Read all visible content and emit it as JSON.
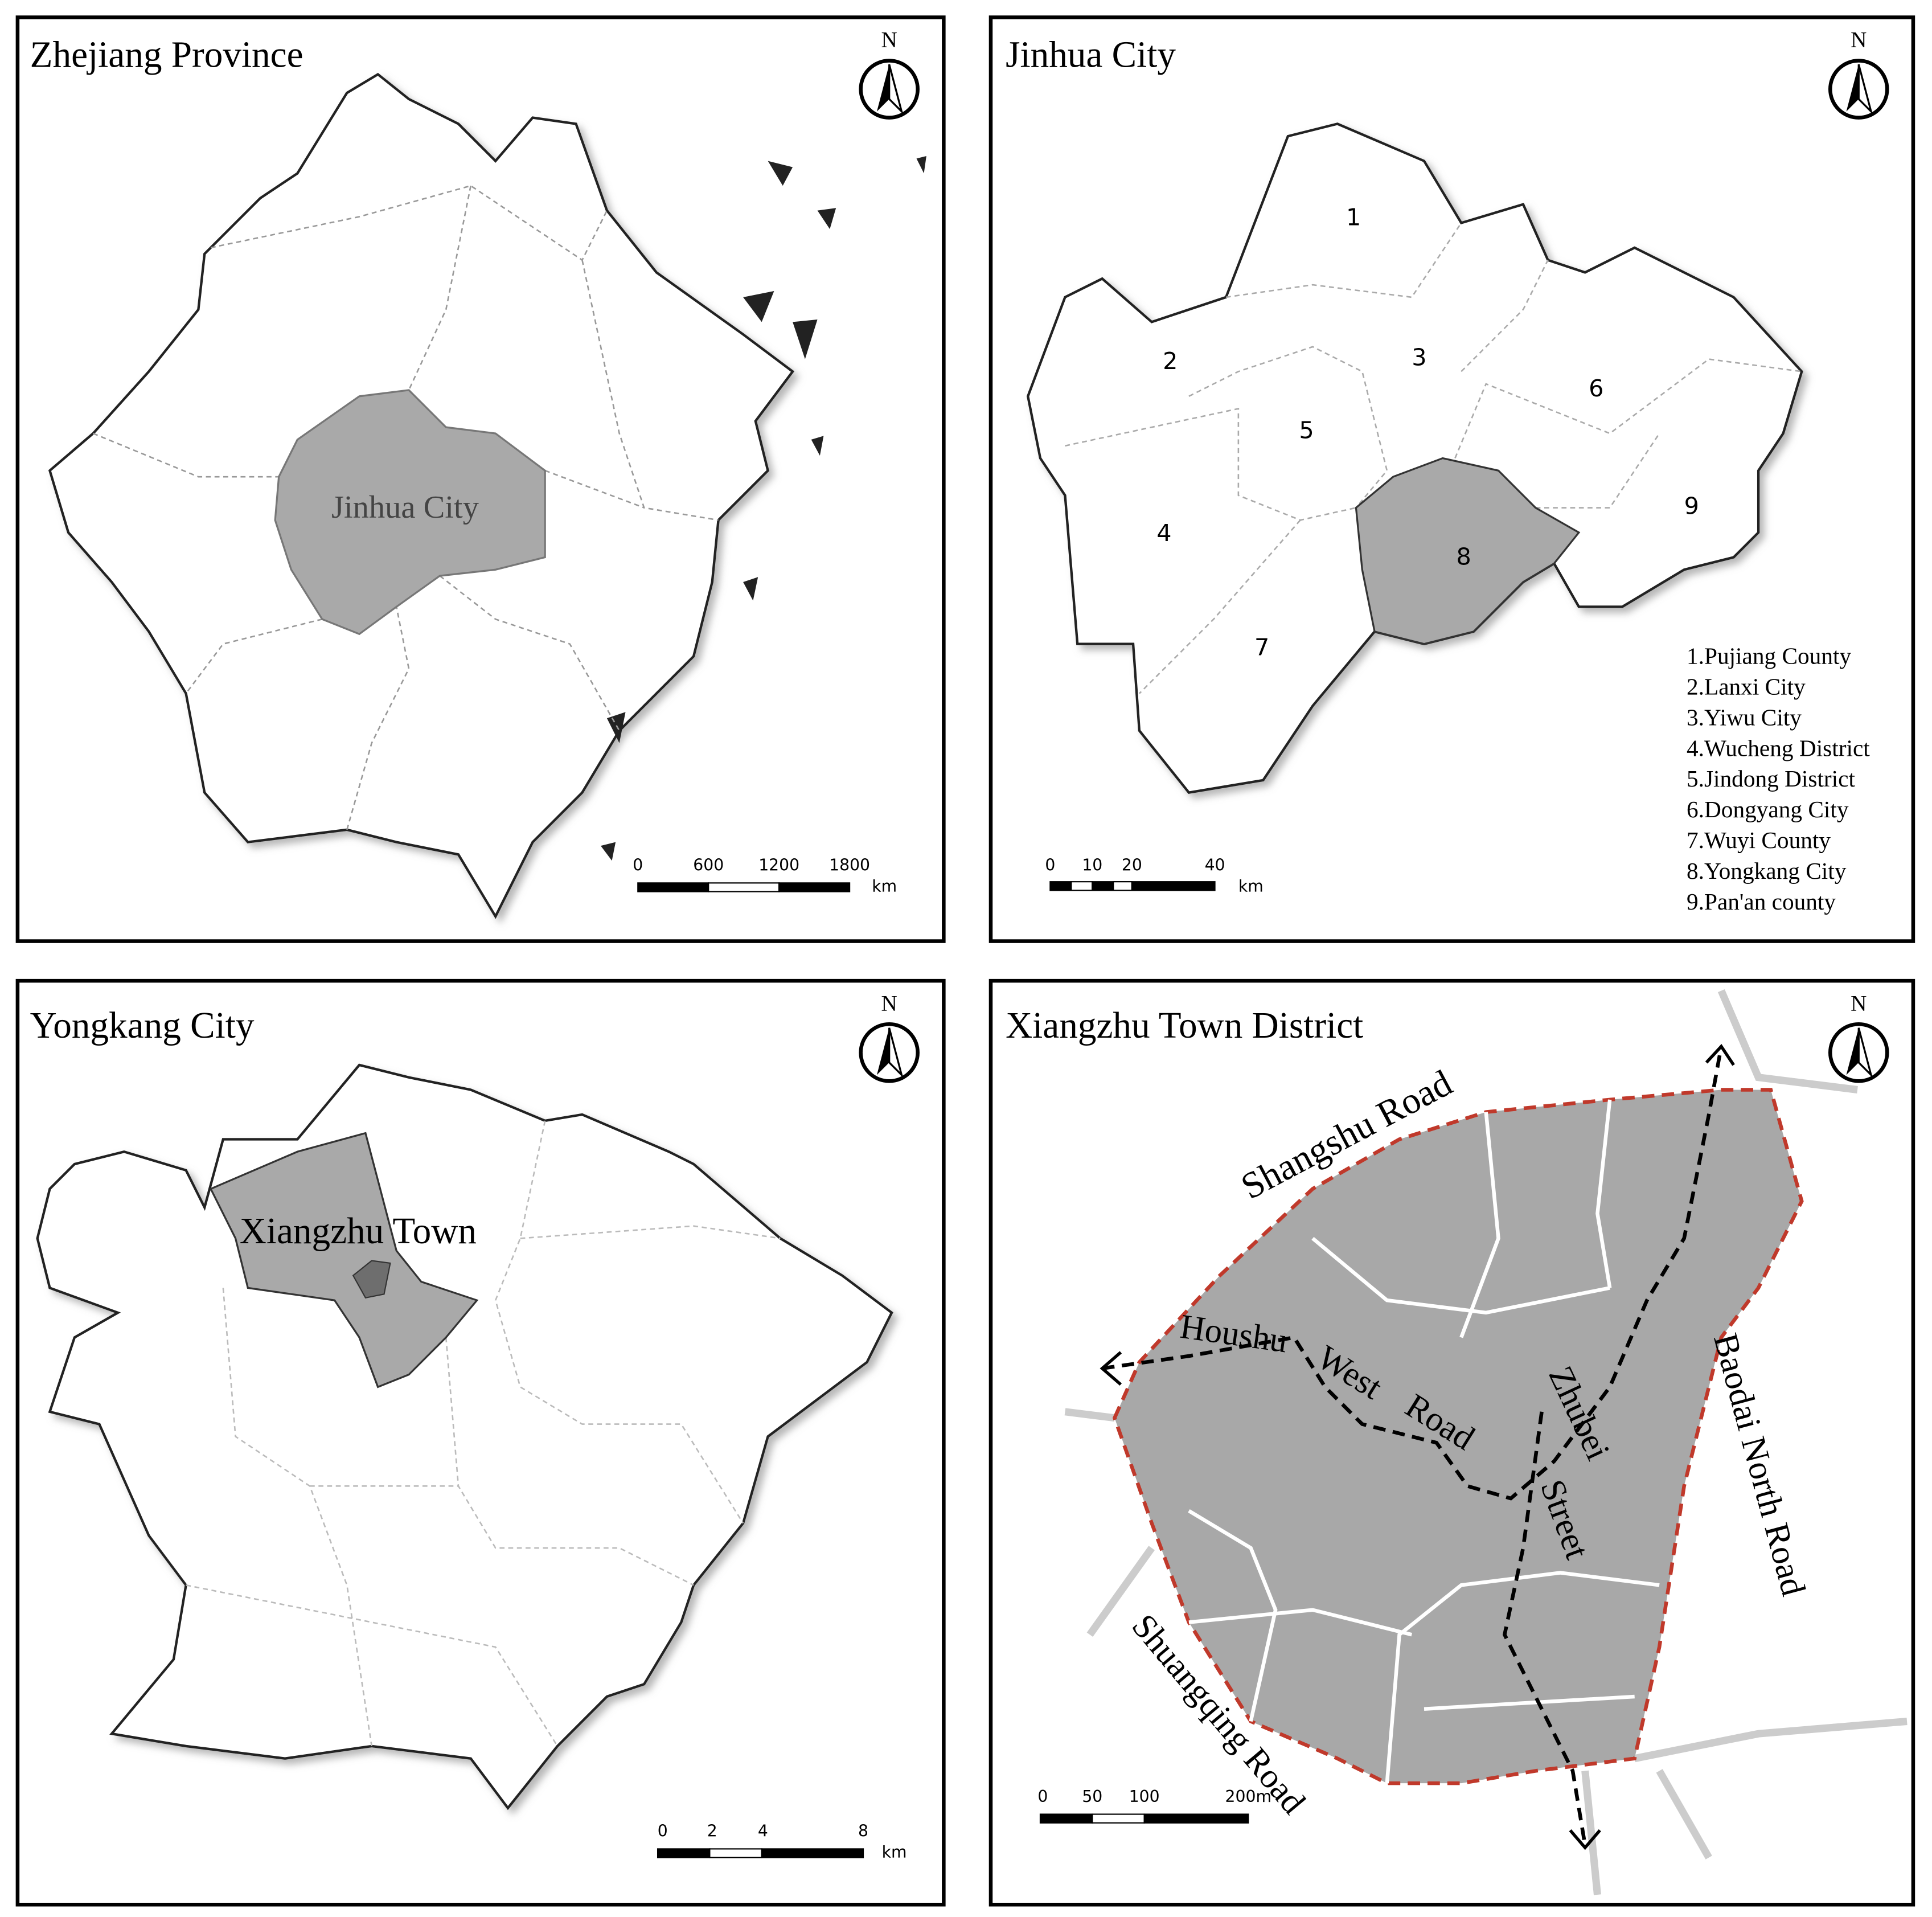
{
  "panels": [
    {
      "title": "Zhejiang Province",
      "north": "N",
      "labels": [
        "Jinhua City"
      ],
      "scale_bar": {
        "ticks": [
          "0",
          "600",
          "1200",
          "1800"
        ],
        "unit": "km"
      }
    },
    {
      "title": "Jinhua City",
      "north": "N",
      "labels": [
        "1",
        "2",
        "3",
        "4",
        "5",
        "6",
        "7",
        "8",
        "9"
      ],
      "legend": [
        "1.Pujiang County",
        "2.Lanxi City",
        "3.Yiwu City",
        "4.Wucheng District",
        "5.Jindong District",
        "6.Dongyang City",
        "7.Wuyi County",
        "8.Yongkang City",
        "9.Pan'an county"
      ],
      "scale_bar": {
        "ticks": [
          "0",
          "10",
          "20",
          "40"
        ],
        "unit": "km"
      }
    },
    {
      "title": "Yongkang City",
      "north": "N",
      "labels": [
        "Xiangzhu Town"
      ],
      "scale_bar": {
        "ticks": [
          "0",
          "2",
          "4",
          "8"
        ],
        "unit": "km"
      }
    },
    {
      "title": "Xiangzhu Town District",
      "north": "N",
      "labels": [
        "Shangshu Road",
        "Houshu",
        "West",
        "Road",
        "Zhubei",
        "Street",
        "Baodai North Road",
        "Shuangqing Road"
      ],
      "scale_bar": {
        "ticks": [
          "0",
          "50",
          "100",
          "200m"
        ]
      }
    }
  ]
}
